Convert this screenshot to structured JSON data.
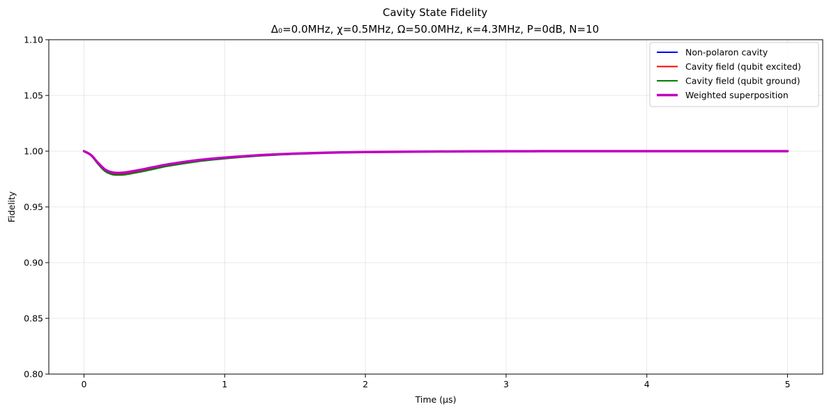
{
  "chart_data": {
    "type": "line",
    "title": "Cavity State Fidelity",
    "subtitle": "Δ₀=0.0MHz, χ=0.5MHz, Ω=50.0MHz, κ=4.3MHz, P=0dB, N=10",
    "xlabel": "Time (μs)",
    "ylabel": "Fidelity",
    "xlim": [
      -0.25,
      5.25
    ],
    "ylim": [
      0.8,
      1.1
    ],
    "xticks": [
      0,
      1,
      2,
      3,
      4,
      5
    ],
    "xtick_labels": [
      "0",
      "1",
      "2",
      "3",
      "4",
      "5"
    ],
    "yticks": [
      0.8,
      0.85,
      0.9,
      0.95,
      1.0,
      1.05,
      1.1
    ],
    "ytick_labels": [
      "0.80",
      "0.85",
      "0.90",
      "0.95",
      "1.00",
      "1.05",
      "1.10"
    ],
    "grid": true,
    "legend_position": "top-right",
    "x": [
      0,
      0.05,
      0.1,
      0.15,
      0.2,
      0.25,
      0.3,
      0.4,
      0.5,
      0.6,
      0.8,
      1.0,
      1.25,
      1.5,
      1.75,
      2.0,
      2.5,
      3.0,
      3.5,
      4.0,
      4.5,
      5.0
    ],
    "series": [
      {
        "name": "Non-polaron cavity",
        "color": "#0000ff",
        "width": 2,
        "values": [
          1.0,
          0.9965,
          0.9895,
          0.9835,
          0.981,
          0.9805,
          0.981,
          0.9832,
          0.9858,
          0.9882,
          0.9918,
          0.9942,
          0.9964,
          0.9978,
          0.9987,
          0.9992,
          0.9997,
          0.9999,
          1.0,
          1.0,
          1.0,
          1.0
        ]
      },
      {
        "name": "Cavity field (qubit excited)",
        "color": "#ff0000",
        "width": 2,
        "values": [
          1.0,
          0.9962,
          0.9888,
          0.9825,
          0.9798,
          0.9792,
          0.9797,
          0.982,
          0.9847,
          0.9872,
          0.991,
          0.9936,
          0.996,
          0.9975,
          0.9985,
          0.9991,
          0.9997,
          0.9999,
          1.0,
          1.0,
          1.0,
          1.0
        ]
      },
      {
        "name": "Cavity field (qubit ground)",
        "color": "#008000",
        "width": 2,
        "values": [
          1.0,
          0.996,
          0.9882,
          0.9818,
          0.979,
          0.9785,
          0.979,
          0.9813,
          0.984,
          0.9866,
          0.9905,
          0.9932,
          0.9957,
          0.9973,
          0.9984,
          0.999,
          0.9996,
          0.9999,
          1.0,
          1.0,
          1.0,
          1.0
        ]
      },
      {
        "name": "Weighted superposition",
        "color": "#bf00bf",
        "width": 3.5,
        "values": [
          1.0,
          0.9965,
          0.9895,
          0.9835,
          0.981,
          0.9805,
          0.981,
          0.9832,
          0.9858,
          0.9882,
          0.9918,
          0.9942,
          0.9964,
          0.9978,
          0.9987,
          0.9992,
          0.9997,
          0.9999,
          1.0,
          1.0,
          1.0,
          1.0
        ]
      }
    ]
  }
}
